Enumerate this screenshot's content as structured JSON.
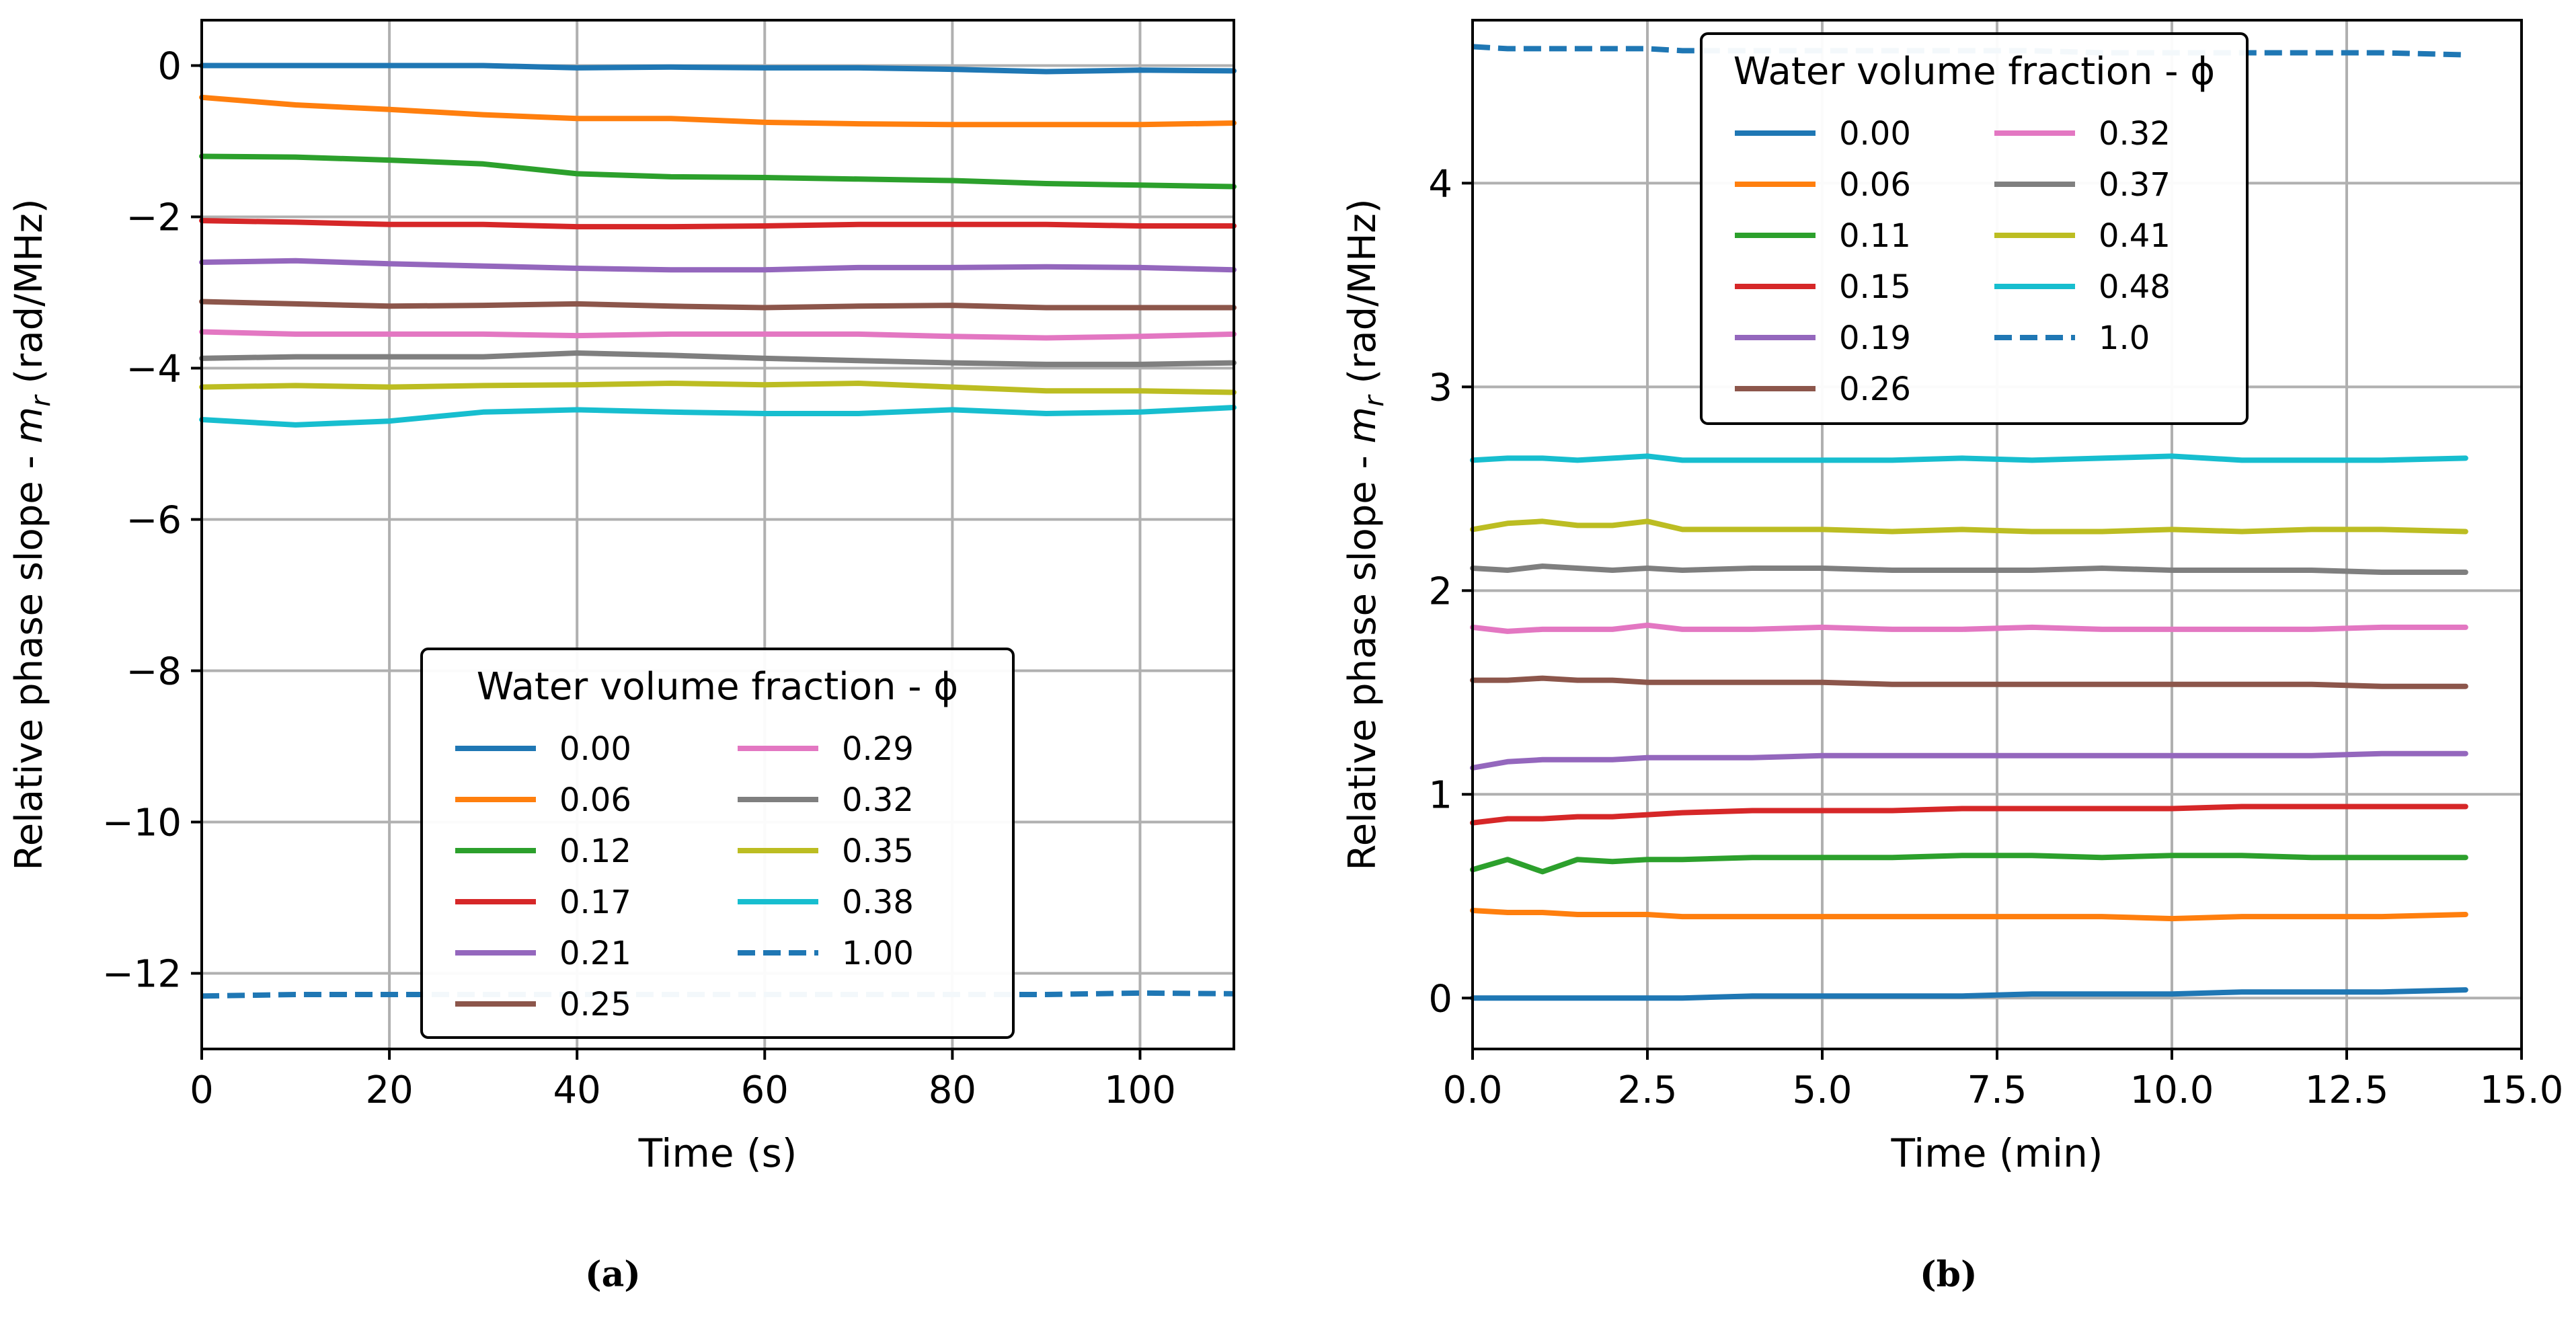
{
  "chart_data": [
    {
      "type": "line",
      "panel": "a",
      "caption": "(a)",
      "xlabel": "Time (s)",
      "ylabel": "Relative phase slope - m_r (rad/MHz)",
      "xlim": [
        0,
        110
      ],
      "ylim": [
        -13,
        0.6
      ],
      "xticks": [
        0,
        20,
        40,
        60,
        80,
        100
      ],
      "xtick_labels": [
        "0",
        "20",
        "40",
        "60",
        "80",
        "100"
      ],
      "yticks": [
        0,
        -2,
        -4,
        -6,
        -8,
        -10,
        -12
      ],
      "ytick_labels": [
        "0",
        "−2",
        "−4",
        "−6",
        "−8",
        "−10",
        "−12"
      ],
      "grid": true,
      "legend": {
        "title": "Water volume fraction - ϕ",
        "location": "lower-center",
        "columns": 2
      },
      "x": [
        0,
        10,
        20,
        30,
        40,
        50,
        60,
        70,
        80,
        90,
        100,
        110
      ],
      "series": [
        {
          "name": "0.00",
          "color": "#1f77b4",
          "dashed": false,
          "values": [
            0.0,
            0.0,
            0.0,
            0.0,
            -0.03,
            -0.02,
            -0.03,
            -0.03,
            -0.05,
            -0.08,
            -0.06,
            -0.07
          ]
        },
        {
          "name": "0.06",
          "color": "#ff7f0e",
          "dashed": false,
          "values": [
            -0.42,
            -0.52,
            -0.58,
            -0.65,
            -0.7,
            -0.7,
            -0.75,
            -0.77,
            -0.78,
            -0.78,
            -0.78,
            -0.76
          ]
        },
        {
          "name": "0.12",
          "color": "#2ca02c",
          "dashed": false,
          "values": [
            -1.2,
            -1.21,
            -1.25,
            -1.3,
            -1.43,
            -1.47,
            -1.48,
            -1.5,
            -1.52,
            -1.56,
            -1.58,
            -1.6
          ]
        },
        {
          "name": "0.17",
          "color": "#d62728",
          "dashed": false,
          "values": [
            -2.05,
            -2.07,
            -2.1,
            -2.1,
            -2.13,
            -2.13,
            -2.12,
            -2.1,
            -2.1,
            -2.1,
            -2.12,
            -2.12
          ]
        },
        {
          "name": "0.21",
          "color": "#9467bd",
          "dashed": false,
          "values": [
            -2.6,
            -2.58,
            -2.62,
            -2.65,
            -2.68,
            -2.7,
            -2.7,
            -2.67,
            -2.67,
            -2.66,
            -2.67,
            -2.7
          ]
        },
        {
          "name": "0.25",
          "color": "#8c564b",
          "dashed": false,
          "values": [
            -3.12,
            -3.15,
            -3.18,
            -3.17,
            -3.15,
            -3.18,
            -3.2,
            -3.18,
            -3.17,
            -3.2,
            -3.2,
            -3.2
          ]
        },
        {
          "name": "0.29",
          "color": "#e377c2",
          "dashed": false,
          "values": [
            -3.52,
            -3.55,
            -3.55,
            -3.55,
            -3.57,
            -3.55,
            -3.55,
            -3.55,
            -3.58,
            -3.6,
            -3.58,
            -3.55
          ]
        },
        {
          "name": "0.32",
          "color": "#7f7f7f",
          "dashed": false,
          "values": [
            -3.87,
            -3.85,
            -3.85,
            -3.85,
            -3.8,
            -3.83,
            -3.87,
            -3.9,
            -3.93,
            -3.95,
            -3.95,
            -3.93
          ]
        },
        {
          "name": "0.35",
          "color": "#bcbd22",
          "dashed": false,
          "values": [
            -4.25,
            -4.23,
            -4.25,
            -4.23,
            -4.22,
            -4.2,
            -4.22,
            -4.2,
            -4.25,
            -4.3,
            -4.3,
            -4.32
          ]
        },
        {
          "name": "0.38",
          "color": "#17becf",
          "dashed": false,
          "values": [
            -4.68,
            -4.75,
            -4.7,
            -4.58,
            -4.55,
            -4.58,
            -4.6,
            -4.6,
            -4.55,
            -4.6,
            -4.58,
            -4.52
          ]
        },
        {
          "name": "1.00",
          "color": "#1f77b4",
          "dashed": true,
          "values": [
            -12.3,
            -12.28,
            -12.28,
            -12.28,
            -12.28,
            -12.28,
            -12.28,
            -12.28,
            -12.28,
            -12.28,
            -12.26,
            -12.27
          ]
        }
      ]
    },
    {
      "type": "line",
      "panel": "b",
      "caption": "(b)",
      "xlabel": "Time (min)",
      "ylabel": "Relative phase slope - m_r (rad/MHz)",
      "xlim": [
        0,
        15
      ],
      "ylim": [
        -0.25,
        4.8
      ],
      "xticks": [
        0,
        2.5,
        5,
        7.5,
        10,
        12.5,
        15
      ],
      "xtick_labels": [
        "0.0",
        "2.5",
        "5.0",
        "7.5",
        "10.0",
        "12.5",
        "15.0"
      ],
      "yticks": [
        0,
        1,
        2,
        3,
        4
      ],
      "ytick_labels": [
        "0",
        "1",
        "2",
        "3",
        "4"
      ],
      "grid": true,
      "legend": {
        "title": "Water volume fraction - ϕ",
        "location": "upper-center",
        "columns": 2
      },
      "x": [
        0,
        0.5,
        1,
        1.5,
        2,
        2.5,
        3,
        4,
        5,
        6,
        7,
        8,
        9,
        10,
        11,
        12,
        13,
        14.2
      ],
      "series": [
        {
          "name": "0.00",
          "color": "#1f77b4",
          "dashed": false,
          "values": [
            0.0,
            0.0,
            0.0,
            0.0,
            0.0,
            0.0,
            0.0,
            0.01,
            0.01,
            0.01,
            0.01,
            0.02,
            0.02,
            0.02,
            0.03,
            0.03,
            0.03,
            0.04
          ]
        },
        {
          "name": "0.06",
          "color": "#ff7f0e",
          "dashed": false,
          "values": [
            0.43,
            0.42,
            0.42,
            0.41,
            0.41,
            0.41,
            0.4,
            0.4,
            0.4,
            0.4,
            0.4,
            0.4,
            0.4,
            0.39,
            0.4,
            0.4,
            0.4,
            0.41
          ]
        },
        {
          "name": "0.11",
          "color": "#2ca02c",
          "dashed": false,
          "values": [
            0.63,
            0.68,
            0.62,
            0.68,
            0.67,
            0.68,
            0.68,
            0.69,
            0.69,
            0.69,
            0.7,
            0.7,
            0.69,
            0.7,
            0.7,
            0.69,
            0.69,
            0.69
          ]
        },
        {
          "name": "0.15",
          "color": "#d62728",
          "dashed": false,
          "values": [
            0.86,
            0.88,
            0.88,
            0.89,
            0.89,
            0.9,
            0.91,
            0.92,
            0.92,
            0.92,
            0.93,
            0.93,
            0.93,
            0.93,
            0.94,
            0.94,
            0.94,
            0.94
          ]
        },
        {
          "name": "0.19",
          "color": "#9467bd",
          "dashed": false,
          "values": [
            1.13,
            1.16,
            1.17,
            1.17,
            1.17,
            1.18,
            1.18,
            1.18,
            1.19,
            1.19,
            1.19,
            1.19,
            1.19,
            1.19,
            1.19,
            1.19,
            1.2,
            1.2
          ]
        },
        {
          "name": "0.26",
          "color": "#8c564b",
          "dashed": false,
          "values": [
            1.56,
            1.56,
            1.57,
            1.56,
            1.56,
            1.55,
            1.55,
            1.55,
            1.55,
            1.54,
            1.54,
            1.54,
            1.54,
            1.54,
            1.54,
            1.54,
            1.53,
            1.53
          ]
        },
        {
          "name": "0.32",
          "color": "#e377c2",
          "dashed": false,
          "values": [
            1.82,
            1.8,
            1.81,
            1.81,
            1.81,
            1.83,
            1.81,
            1.81,
            1.82,
            1.81,
            1.81,
            1.82,
            1.81,
            1.81,
            1.81,
            1.81,
            1.82,
            1.82
          ]
        },
        {
          "name": "0.37",
          "color": "#7f7f7f",
          "dashed": false,
          "values": [
            2.11,
            2.1,
            2.12,
            2.11,
            2.1,
            2.11,
            2.1,
            2.11,
            2.11,
            2.1,
            2.1,
            2.1,
            2.11,
            2.1,
            2.1,
            2.1,
            2.09,
            2.09
          ]
        },
        {
          "name": "0.41",
          "color": "#bcbd22",
          "dashed": false,
          "values": [
            2.3,
            2.33,
            2.34,
            2.32,
            2.32,
            2.34,
            2.3,
            2.3,
            2.3,
            2.29,
            2.3,
            2.29,
            2.29,
            2.3,
            2.29,
            2.3,
            2.3,
            2.29
          ]
        },
        {
          "name": "0.48",
          "color": "#17becf",
          "dashed": false,
          "values": [
            2.64,
            2.65,
            2.65,
            2.64,
            2.65,
            2.66,
            2.64,
            2.64,
            2.64,
            2.64,
            2.65,
            2.64,
            2.65,
            2.66,
            2.64,
            2.64,
            2.64,
            2.65
          ]
        },
        {
          "name": "1.0",
          "color": "#1f77b4",
          "dashed": true,
          "values": [
            4.67,
            4.66,
            4.66,
            4.66,
            4.66,
            4.66,
            4.65,
            4.65,
            4.65,
            4.65,
            4.65,
            4.65,
            4.64,
            4.64,
            4.64,
            4.64,
            4.64,
            4.63
          ]
        }
      ]
    }
  ]
}
